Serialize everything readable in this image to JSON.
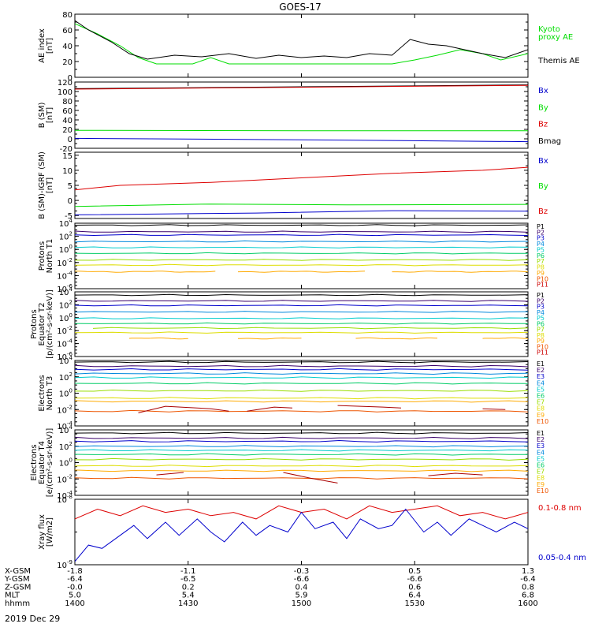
{
  "title": "GOES-17",
  "date_label": "2019 Dec 29",
  "footer": {
    "row_labels": [
      "X-GSM",
      "Y-GSM",
      "Z-GSM",
      "MLT",
      "hhmm"
    ],
    "columns": [
      [
        "-1.8",
        "-6.4",
        "-0.0",
        "5.0",
        "1400"
      ],
      [
        "-1.1",
        "-6.5",
        "0.2",
        "5.4",
        "1430"
      ],
      [
        "-0.3",
        "-6.6",
        "0.4",
        "5.9",
        "1500"
      ],
      [
        "0.5",
        "-6.6",
        "0.6",
        "6.4",
        "1530"
      ],
      [
        "1.3",
        "-6.4",
        "0.8",
        "6.8",
        "1600"
      ]
    ]
  },
  "colors": {
    "black": "#000000",
    "green": "#00dd00",
    "red": "#dd0000",
    "blue": "#0000cc",
    "p_colors": [
      "#000000",
      "#3a006a",
      "#0000cc",
      "#0088dd",
      "#00cccc",
      "#00cc66",
      "#99dd00",
      "#dddd00",
      "#ffaa00",
      "#ee5500",
      "#cc0000"
    ]
  },
  "chart_data": [
    {
      "type": "line",
      "id": "ae",
      "ylabel": [
        "AE index",
        "[nT]"
      ],
      "ylim": [
        0,
        80
      ],
      "yticks": [
        0,
        20,
        40,
        60,
        80
      ],
      "ytick_labels": [
        "0",
        "20",
        "40",
        "60",
        "80"
      ],
      "x_range_hhmm": [
        "1400",
        "1600"
      ],
      "legend": [
        {
          "text": "Kyoto",
          "color": "#00dd00"
        },
        {
          "text": "proxy AE",
          "color": "#00dd00"
        },
        {
          "text": "Themis AE",
          "color": "#000000"
        }
      ],
      "series": [
        {
          "name": "Kyoto proxy AE",
          "color": "#00dd00",
          "x": [
            0,
            0.05,
            0.1,
            0.14,
            0.18,
            0.22,
            0.26,
            0.3,
            0.34,
            0.4,
            0.45,
            0.5,
            0.55,
            0.6,
            0.65,
            0.7,
            0.75,
            0.8,
            0.85,
            0.9,
            0.94,
            1
          ],
          "y": [
            68,
            55,
            40,
            25,
            17,
            17,
            17,
            25,
            17,
            17,
            17,
            17,
            17,
            17,
            17,
            17,
            22,
            28,
            35,
            30,
            22,
            30
          ]
        },
        {
          "name": "Themis AE",
          "color": "#000000",
          "x": [
            0,
            0.03,
            0.08,
            0.12,
            0.16,
            0.22,
            0.28,
            0.34,
            0.4,
            0.45,
            0.5,
            0.55,
            0.6,
            0.65,
            0.7,
            0.74,
            0.78,
            0.82,
            0.86,
            0.9,
            0.95,
            1
          ],
          "y": [
            72,
            60,
            45,
            30,
            23,
            28,
            26,
            30,
            24,
            28,
            25,
            27,
            25,
            30,
            28,
            48,
            42,
            40,
            35,
            30,
            25,
            35
          ]
        }
      ]
    },
    {
      "type": "line",
      "id": "b_sm",
      "ylabel": [
        "B (SM)",
        "[nT]"
      ],
      "ylim": [
        -20,
        120
      ],
      "yticks": [
        -20,
        0,
        20,
        40,
        60,
        80,
        100,
        120
      ],
      "ytick_labels": [
        "-20",
        "0",
        "20",
        "40",
        "60",
        "80",
        "100",
        "120"
      ],
      "legend": [
        {
          "text": "Bx",
          "color": "#0000cc"
        },
        {
          "text": "By",
          "color": "#00dd00"
        },
        {
          "text": "Bz",
          "color": "#dd0000"
        },
        {
          "text": "Bmag",
          "color": "#000000"
        }
      ],
      "series": [
        {
          "name": "Bmag",
          "color": "#000000",
          "x": [
            0,
            0.5,
            1
          ],
          "y": [
            106,
            110,
            114
          ]
        },
        {
          "name": "Bz",
          "color": "#dd0000",
          "x": [
            0,
            0.5,
            1
          ],
          "y": [
            105,
            109,
            113
          ]
        },
        {
          "name": "By",
          "color": "#00dd00",
          "x": [
            0,
            0.5,
            1
          ],
          "y": [
            18,
            17,
            17
          ]
        },
        {
          "name": "Bx",
          "color": "#0000cc",
          "x": [
            0,
            0.5,
            1
          ],
          "y": [
            1,
            -2,
            -6
          ]
        }
      ]
    },
    {
      "type": "line",
      "id": "b_diff",
      "ylabel": [
        "B (SM)-IGRF (SM)",
        "[nT]"
      ],
      "ylim": [
        -6,
        16
      ],
      "yticks": [
        -5,
        0,
        5,
        10,
        15
      ],
      "ytick_labels": [
        "-5",
        "0",
        "5",
        "10",
        "15"
      ],
      "legend": [
        {
          "text": "Bx",
          "color": "#0000cc"
        },
        {
          "text": "By",
          "color": "#00dd00"
        },
        {
          "text": "Bz",
          "color": "#dd0000"
        }
      ],
      "series": [
        {
          "name": "Bz",
          "color": "#dd0000",
          "x": [
            0,
            0.1,
            0.3,
            0.5,
            0.7,
            0.9,
            1
          ],
          "y": [
            3.5,
            5,
            6,
            7.5,
            9,
            10,
            11
          ]
        },
        {
          "name": "By",
          "color": "#00dd00",
          "x": [
            0,
            0.3,
            0.6,
            1
          ],
          "y": [
            -2,
            -1.2,
            -1.5,
            -1.3
          ]
        },
        {
          "name": "Bx",
          "color": "#0000cc",
          "x": [
            0,
            0.4,
            0.7,
            1
          ],
          "y": [
            -4.8,
            -4.2,
            -3.4,
            -3.6
          ]
        }
      ]
    },
    {
      "type": "line",
      "id": "protons_t1",
      "ylabel": [
        "Protons",
        "North T1"
      ],
      "yscale": "log",
      "ylim_exp": [
        -6,
        4
      ],
      "ytick_exps": [
        -6,
        -4,
        -2,
        0,
        2,
        4
      ],
      "legend_names": [
        "P1",
        "P2",
        "P3",
        "P4",
        "P5",
        "P6",
        "P7",
        "P8",
        "P9",
        "P10",
        "P11"
      ],
      "levels_log10": [
        3.7,
        2.7,
        2.2,
        1.2,
        0.3,
        -0.6,
        -1.6,
        -2.4,
        -3.4,
        null,
        null
      ],
      "gaps": {
        "8": [
          [
            0.31,
            0.36
          ],
          [
            0.64,
            0.7
          ]
        ]
      }
    },
    {
      "type": "line",
      "id": "protons_t2",
      "ylabel": [
        "Protons",
        "Equator T2",
        "[p/(cm²-s-sr-keV)]"
      ],
      "yscale": "log",
      "ylim_exp": [
        -6,
        4
      ],
      "ytick_exps": [
        -6,
        -4,
        -2,
        0,
        2,
        4
      ],
      "legend_names": [
        "P1",
        "P2",
        "P3",
        "P4",
        "P5",
        "P6",
        "P7",
        "P8",
        "P9",
        "P10",
        "P11"
      ],
      "levels_log10": [
        3.5,
        2.6,
        1.9,
        0.9,
        -0.1,
        -0.9,
        -1.6,
        -2.3,
        -3.2,
        null,
        null
      ],
      "gaps": {
        "6": [
          [
            0.0,
            0.04
          ]
        ],
        "8": [
          [
            0.0,
            0.12
          ],
          [
            0.25,
            0.36
          ],
          [
            0.5,
            0.62
          ],
          [
            0.8,
            0.9
          ]
        ]
      }
    },
    {
      "type": "line",
      "id": "electrons_t3",
      "ylabel": [
        "Electrons",
        "North T3"
      ],
      "yscale": "log",
      "ylim_exp": [
        -4,
        4
      ],
      "ytick_exps": [
        -4,
        -2,
        0,
        2,
        4
      ],
      "legend_names": [
        "E1",
        "E2",
        "E3",
        "E4",
        "E5",
        "E6",
        "E7",
        "E8",
        "E9",
        "E10"
      ],
      "levels_log10": [
        3.8,
        3.3,
        2.9,
        2.4,
        1.9,
        1.2,
        0.3,
        -0.6,
        -1.0,
        -2.2
      ],
      "e10_segments": [
        [
          [
            0.14,
            -2.4
          ],
          [
            0.2,
            -1.6
          ],
          [
            0.3,
            -1.9
          ],
          [
            0.34,
            -2.2
          ]
        ],
        [
          [
            0.38,
            -2.2
          ],
          [
            0.44,
            -1.7
          ],
          [
            0.48,
            -1.8
          ]
        ],
        [
          [
            0.58,
            -1.5
          ],
          [
            0.68,
            -1.7
          ],
          [
            0.72,
            -1.8
          ]
        ],
        [
          [
            0.9,
            -1.9
          ],
          [
            0.95,
            -2.0
          ]
        ]
      ]
    },
    {
      "type": "line",
      "id": "electrons_t4",
      "ylabel": [
        "Electrons",
        "Equator T4",
        "[e/(cm²-s-sr-keV)]"
      ],
      "yscale": "log",
      "ylim_exp": [
        -4,
        4
      ],
      "ytick_exps": [
        -4,
        -2,
        0,
        2,
        4
      ],
      "legend_names": [
        "E1",
        "E2",
        "E3",
        "E4",
        "E5",
        "E6",
        "E7",
        "E8",
        "E9",
        "E10"
      ],
      "levels_log10": [
        3.6,
        3.0,
        2.6,
        2.0,
        1.5,
        1.0,
        0.4,
        -0.4,
        -1.0,
        -1.9
      ],
      "e10_segments": [
        [
          [
            0.18,
            -1.5
          ],
          [
            0.24,
            -1.2
          ]
        ],
        [
          [
            0.46,
            -1.2
          ],
          [
            0.52,
            -1.9
          ],
          [
            0.58,
            -2.5
          ]
        ],
        [
          [
            0.78,
            -1.6
          ],
          [
            0.84,
            -1.3
          ],
          [
            0.9,
            -1.5
          ]
        ]
      ]
    },
    {
      "type": "line",
      "id": "xray",
      "ylabel": [
        "Xray flux",
        "[W/m2]"
      ],
      "yscale": "log",
      "ylim_exp": [
        -9,
        -8
      ],
      "ytick_exps": [
        -9,
        -8
      ],
      "legend": [
        {
          "text": "0.1-0.8 nm",
          "color": "#dd0000"
        },
        {
          "text": "0.05-0.4 nm",
          "color": "#0000cc"
        }
      ],
      "series": [
        {
          "name": "0.1-0.8 nm",
          "color": "#dd0000",
          "x": [
            0,
            0.05,
            0.1,
            0.15,
            0.2,
            0.25,
            0.3,
            0.35,
            0.4,
            0.45,
            0.5,
            0.55,
            0.6,
            0.65,
            0.7,
            0.75,
            0.8,
            0.85,
            0.9,
            0.95,
            1
          ],
          "y": [
            -8.3,
            -8.15,
            -8.25,
            -8.1,
            -8.2,
            -8.15,
            -8.25,
            -8.2,
            -8.3,
            -8.1,
            -8.2,
            -8.15,
            -8.3,
            -8.1,
            -8.2,
            -8.15,
            -8.1,
            -8.25,
            -8.2,
            -8.3,
            -8.2
          ]
        },
        {
          "name": "0.05-0.4 nm",
          "color": "#0000cc",
          "x": [
            0,
            0.03,
            0.06,
            0.1,
            0.13,
            0.16,
            0.2,
            0.23,
            0.27,
            0.3,
            0.33,
            0.37,
            0.4,
            0.43,
            0.47,
            0.5,
            0.53,
            0.57,
            0.6,
            0.63,
            0.67,
            0.7,
            0.73,
            0.77,
            0.8,
            0.83,
            0.87,
            0.9,
            0.93,
            0.97,
            1
          ],
          "y": [
            -8.95,
            -8.7,
            -8.75,
            -8.55,
            -8.4,
            -8.6,
            -8.35,
            -8.55,
            -8.3,
            -8.5,
            -8.65,
            -8.35,
            -8.55,
            -8.4,
            -8.5,
            -8.2,
            -8.45,
            -8.35,
            -8.6,
            -8.3,
            -8.45,
            -8.4,
            -8.15,
            -8.5,
            -8.35,
            -8.55,
            -8.3,
            -8.4,
            -8.5,
            -8.35,
            -8.45
          ]
        }
      ]
    }
  ]
}
